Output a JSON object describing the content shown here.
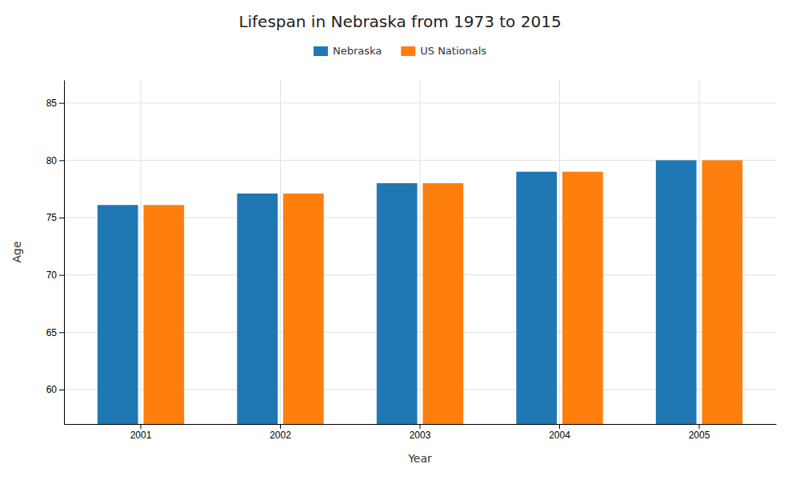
{
  "chart_data": {
    "type": "bar",
    "title": "Lifespan in Nebraska from 1973 to 2015",
    "xlabel": "Year",
    "ylabel": "Age",
    "categories": [
      "2001",
      "2002",
      "2003",
      "2004",
      "2005"
    ],
    "series": [
      {
        "name": "Nebraska",
        "values": [
          76.1,
          77.1,
          78.0,
          79.0,
          80.0
        ]
      },
      {
        "name": "US Nationals",
        "values": [
          76.1,
          77.1,
          78.0,
          79.0,
          80.0
        ]
      }
    ],
    "ylim": [
      57,
      87
    ],
    "yticks": [
      60,
      65,
      70,
      75,
      80,
      85
    ],
    "grid": true,
    "legend": "top"
  }
}
